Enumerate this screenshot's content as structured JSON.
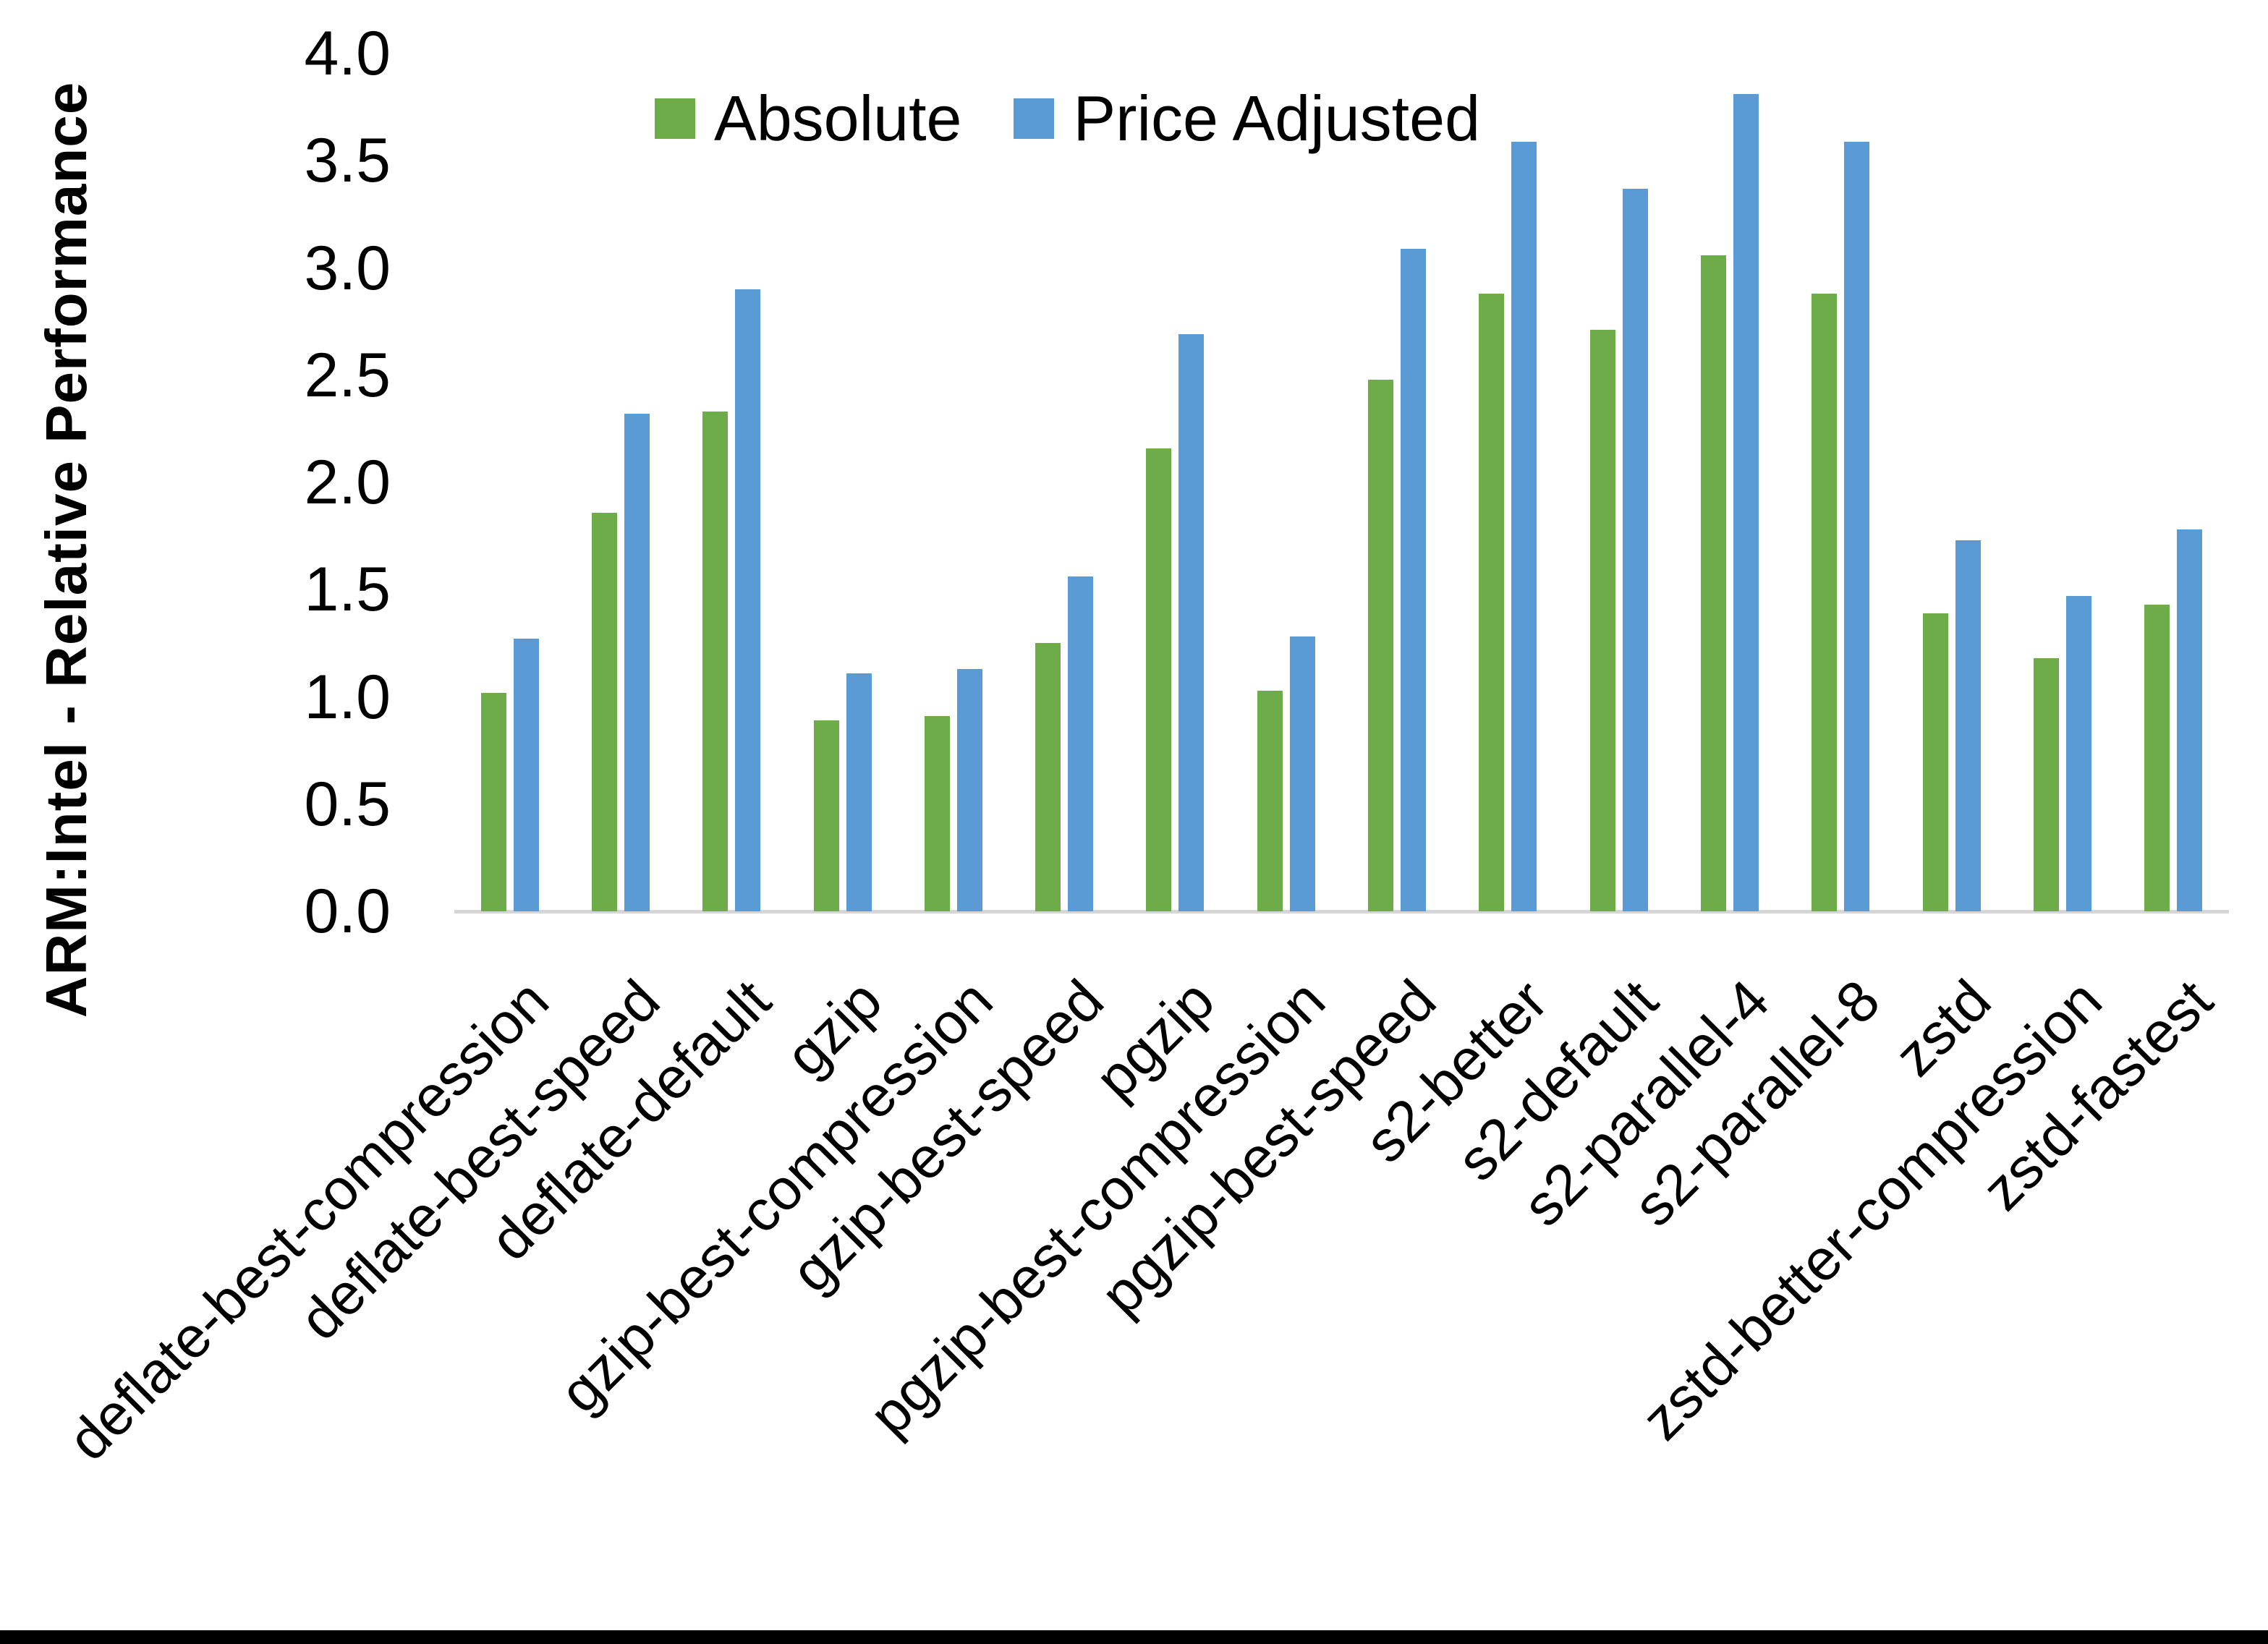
{
  "chart_data": {
    "type": "bar",
    "title": "",
    "ylabel": "ARM:Intel - Relative Performance",
    "xlabel": "",
    "ylim": [
      0.0,
      4.0
    ],
    "ytick_step": 0.5,
    "yticks": [
      "0.0",
      "0.5",
      "1.0",
      "1.5",
      "2.0",
      "2.5",
      "3.0",
      "3.5",
      "4.0"
    ],
    "grid": false,
    "legend_position": "top-center",
    "categories": [
      "deflate-best-compression",
      "deflate-best-speed",
      "deflate-default",
      "gzip",
      "gzip-best-compression",
      "gzip-best-speed",
      "pgzip",
      "pgzip-best-compression",
      "pgzip-best-speed",
      "s2-better",
      "s2-default",
      "s2-parallel-4",
      "s2-parallel-8",
      "zstd",
      "zstd-better-compression",
      "zstd-fastest"
    ],
    "series": [
      {
        "name": "Absolute",
        "color": "#6DAC48",
        "values": [
          1.02,
          1.86,
          2.33,
          0.89,
          0.91,
          1.25,
          2.16,
          1.03,
          2.48,
          2.88,
          2.71,
          3.06,
          2.88,
          1.39,
          1.18,
          1.43
        ]
      },
      {
        "name": "Price Adjusted",
        "color": "#5B9BD5",
        "values": [
          1.27,
          2.32,
          2.9,
          1.11,
          1.13,
          1.56,
          2.69,
          1.28,
          3.09,
          3.59,
          3.37,
          3.81,
          3.59,
          1.73,
          1.47,
          1.78
        ]
      }
    ],
    "axis_line_color": "#D6D6D6"
  }
}
